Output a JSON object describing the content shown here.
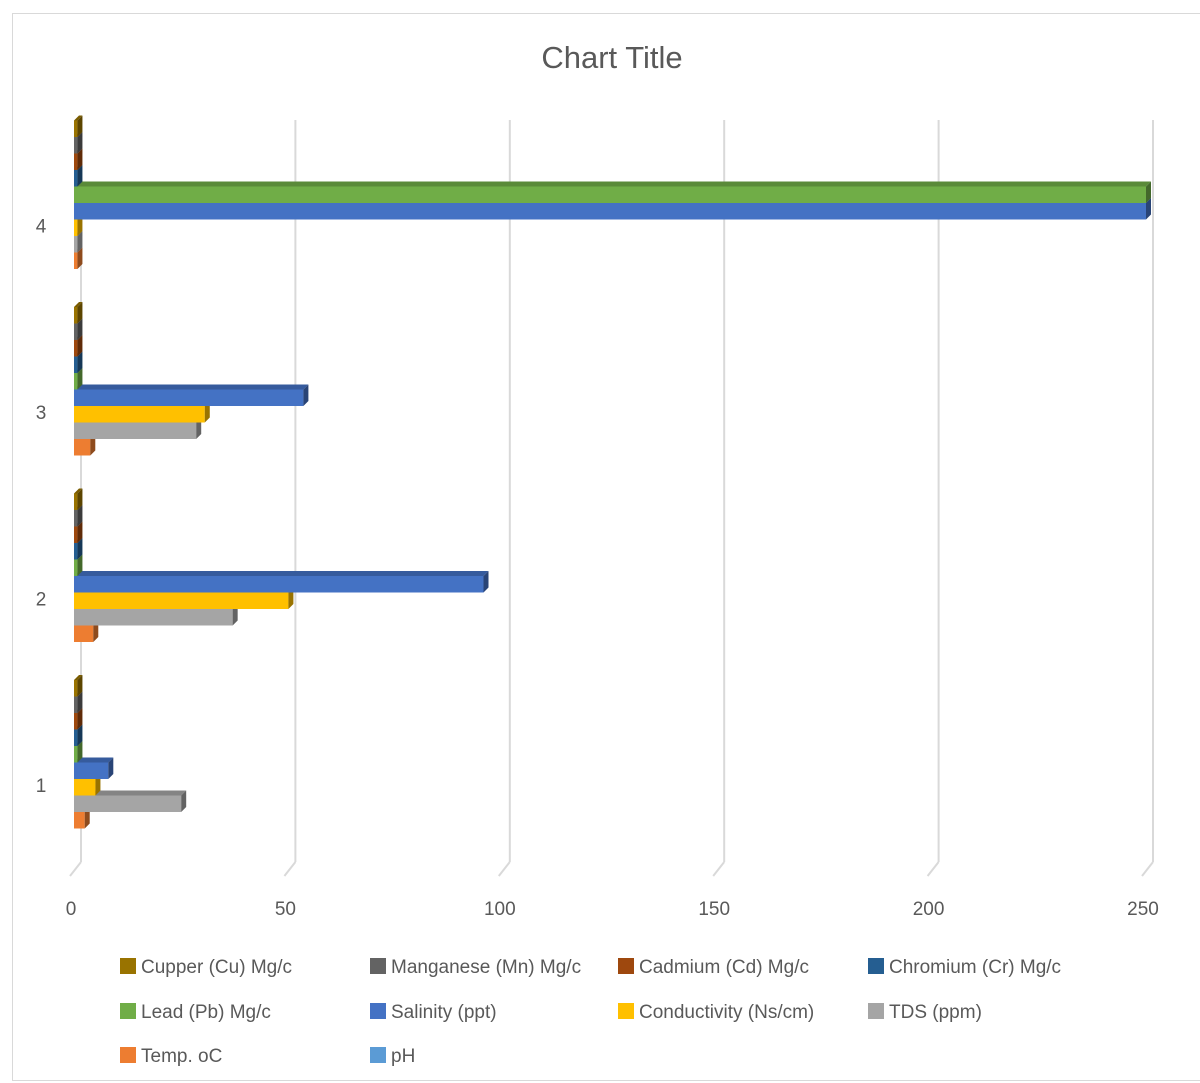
{
  "chart_data": {
    "type": "bar",
    "orientation": "horizontal",
    "title": "Chart Title",
    "xlabel": "",
    "ylabel": "",
    "xlim": [
      0,
      250
    ],
    "x_ticks": [
      "0",
      "50",
      "100",
      "150",
      "200",
      "250"
    ],
    "categories": [
      "1",
      "2",
      "3",
      "4"
    ],
    "grid": "vertical",
    "legend_position": "bottom",
    "series": [
      {
        "name": "pH",
        "color": "#5b9bd5",
        "values": [
          0,
          0,
          0,
          0
        ]
      },
      {
        "name": "Temp. oC",
        "color": "#ed7d31",
        "values": [
          2.5,
          4.5,
          3.8,
          0.8
        ]
      },
      {
        "name": "TDS (ppm)",
        "color": "#a5a5a5",
        "values": [
          25,
          37,
          28.5,
          0.8
        ]
      },
      {
        "name": "Conductivity (Ns/cm)",
        "color": "#ffc000",
        "values": [
          5,
          50,
          30.5,
          0.8
        ]
      },
      {
        "name": "Salinity (ppt)",
        "color": "#4472c4",
        "values": [
          8,
          95.5,
          53.5,
          250
        ]
      },
      {
        "name": "Lead (Pb) Mg/c",
        "color": "#70ad47",
        "values": [
          0.8,
          0.8,
          0.8,
          250
        ]
      },
      {
        "name": "Chromium (Cr) Mg/c",
        "color": "#255e91",
        "values": [
          0.8,
          0.8,
          0.8,
          0.8
        ]
      },
      {
        "name": "Cadmium (Cd) Mg/c",
        "color": "#9e480e",
        "values": [
          0.8,
          0.8,
          0.8,
          0.8
        ]
      },
      {
        "name": "Manganese (Mn) Mg/c",
        "color": "#636363",
        "values": [
          0.8,
          0.8,
          0.8,
          0.8
        ]
      },
      {
        "name": "Cupper (Cu) Mg/c",
        "color": "#997300",
        "values": [
          0.8,
          0.8,
          0.8,
          0.8
        ]
      }
    ],
    "legend_order": [
      "Cupper (Cu) Mg/c",
      "Manganese (Mn) Mg/c",
      "Cadmium (Cd) Mg/c",
      "Chromium (Cr) Mg/c",
      "Lead (Pb) Mg/c",
      "Salinity (ppt)",
      "Conductivity (Ns/cm)",
      "TDS (ppm)",
      "Temp. oC",
      "pH"
    ]
  }
}
